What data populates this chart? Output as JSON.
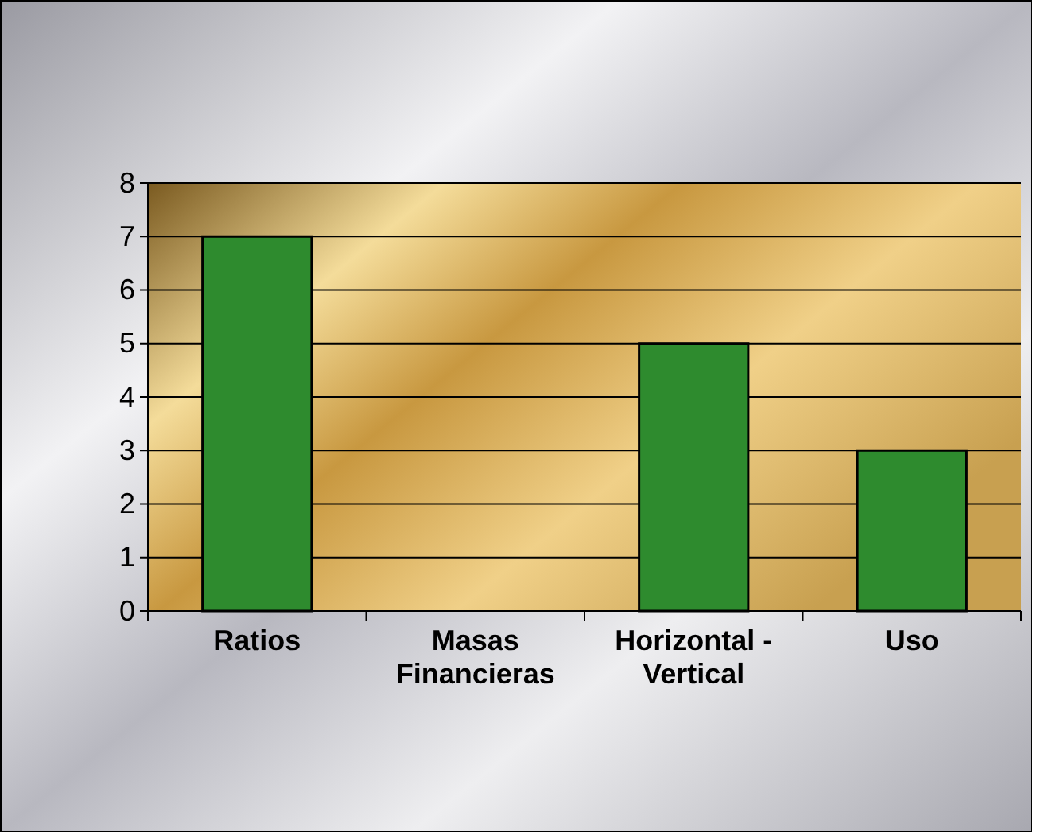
{
  "chart_data": {
    "type": "bar",
    "categories": [
      "Ratios",
      "Masas Financieras",
      "Horizontal - Vertical",
      "Uso"
    ],
    "values": [
      7,
      0,
      5,
      3
    ],
    "color": "#2e8b2e",
    "ylim": [
      0,
      8
    ],
    "yticks": [
      0,
      1,
      2,
      3,
      4,
      5,
      6,
      7,
      8
    ],
    "grid": "y"
  }
}
